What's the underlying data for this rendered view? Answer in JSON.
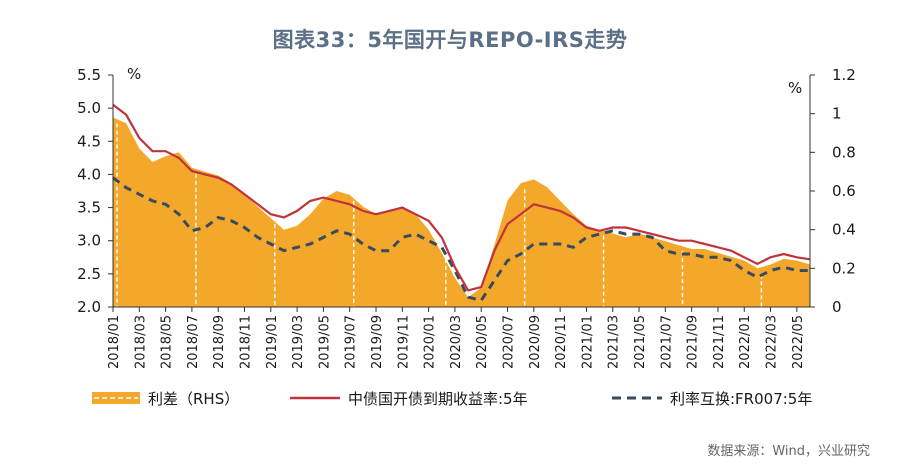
{
  "title": "图表33：5年国开与REPO-IRS走势",
  "source": "数据来源：Wind，兴业研究",
  "colors": {
    "spread": "#f3a82b",
    "cdb": "#c0323c",
    "irs": "#3a4b5c"
  },
  "chart_data": {
    "type": "line",
    "left_axis": {
      "unit": "%",
      "ylim": [
        2.0,
        5.5
      ],
      "ticks": [
        "2.0",
        "2.5",
        "3.0",
        "3.5",
        "4.0",
        "4.5",
        "5.0",
        "5.5"
      ]
    },
    "right_axis": {
      "unit": "%",
      "ylim": [
        0,
        1.2
      ],
      "ticks": [
        "0",
        "0.2",
        "0.4",
        "0.6",
        "0.8",
        "1",
        "1.2"
      ]
    },
    "x_ticks": [
      "2018/01",
      "2018/03",
      "2018/05",
      "2018/07",
      "2018/09",
      "2018/11",
      "2019/01",
      "2019/03",
      "2019/05",
      "2019/07",
      "2019/09",
      "2019/11",
      "2020/01",
      "2020/03",
      "2020/05",
      "2020/07",
      "2020/09",
      "2020/11",
      "2021/01",
      "2021/03",
      "2021/05",
      "2021/07",
      "2021/09",
      "2021/11",
      "2022/01",
      "2022/03",
      "2022/05"
    ],
    "x": [
      "2018/01",
      "2018/02",
      "2018/03",
      "2018/04",
      "2018/05",
      "2018/06",
      "2018/07",
      "2018/08",
      "2018/09",
      "2018/10",
      "2018/11",
      "2018/12",
      "2019/01",
      "2019/02",
      "2019/03",
      "2019/04",
      "2019/05",
      "2019/06",
      "2019/07",
      "2019/08",
      "2019/09",
      "2019/10",
      "2019/11",
      "2019/12",
      "2020/01",
      "2020/02",
      "2020/03",
      "2020/04",
      "2020/05",
      "2020/06",
      "2020/07",
      "2020/08",
      "2020/09",
      "2020/10",
      "2020/11",
      "2020/12",
      "2021/01",
      "2021/02",
      "2021/03",
      "2021/04",
      "2021/05",
      "2021/06",
      "2021/07",
      "2021/08",
      "2021/09",
      "2021/10",
      "2021/11",
      "2021/12",
      "2022/01",
      "2022/02",
      "2022/03",
      "2022/04",
      "2022/05",
      "2022/06"
    ],
    "series": [
      {
        "name": "利差（RHS）",
        "type": "area",
        "axis": "right",
        "values": [
          0.98,
          0.95,
          0.82,
          0.75,
          0.78,
          0.8,
          0.72,
          0.7,
          0.68,
          0.64,
          0.58,
          0.52,
          0.46,
          0.4,
          0.42,
          0.48,
          0.56,
          0.6,
          0.58,
          0.52,
          0.48,
          0.5,
          0.52,
          0.48,
          0.4,
          0.28,
          0.15,
          0.05,
          0.1,
          0.32,
          0.55,
          0.64,
          0.66,
          0.62,
          0.55,
          0.48,
          0.42,
          0.4,
          0.38,
          0.36,
          0.38,
          0.36,
          0.34,
          0.32,
          0.3,
          0.3,
          0.28,
          0.26,
          0.24,
          0.2,
          0.22,
          0.25,
          0.24,
          0.22
        ]
      },
      {
        "name": "中债国开债到期收益率:5年",
        "type": "line",
        "axis": "left",
        "values": [
          5.05,
          4.9,
          4.55,
          4.35,
          4.35,
          4.25,
          4.05,
          4.0,
          3.95,
          3.85,
          3.7,
          3.55,
          3.4,
          3.35,
          3.45,
          3.6,
          3.65,
          3.6,
          3.55,
          3.45,
          3.4,
          3.45,
          3.5,
          3.4,
          3.3,
          3.05,
          2.6,
          2.25,
          2.3,
          2.85,
          3.25,
          3.4,
          3.55,
          3.5,
          3.45,
          3.35,
          3.2,
          3.15,
          3.2,
          3.2,
          3.15,
          3.1,
          3.05,
          3.0,
          3.0,
          2.95,
          2.9,
          2.85,
          2.75,
          2.65,
          2.75,
          2.8,
          2.75,
          2.72
        ]
      },
      {
        "name": "利率互换:FR007:5年",
        "type": "line",
        "axis": "left",
        "dashed": true,
        "values": [
          3.95,
          3.8,
          3.7,
          3.6,
          3.55,
          3.4,
          3.15,
          3.2,
          3.35,
          3.3,
          3.2,
          3.05,
          2.95,
          2.85,
          2.9,
          2.95,
          3.05,
          3.15,
          3.1,
          2.95,
          2.85,
          2.85,
          3.05,
          3.1,
          3.0,
          2.9,
          2.55,
          2.15,
          2.1,
          2.4,
          2.7,
          2.8,
          2.95,
          2.95,
          2.95,
          2.9,
          3.05,
          3.1,
          3.15,
          3.1,
          3.1,
          3.05,
          2.85,
          2.8,
          2.8,
          2.75,
          2.75,
          2.7,
          2.55,
          2.45,
          2.55,
          2.6,
          2.55,
          2.55
        ]
      }
    ]
  }
}
